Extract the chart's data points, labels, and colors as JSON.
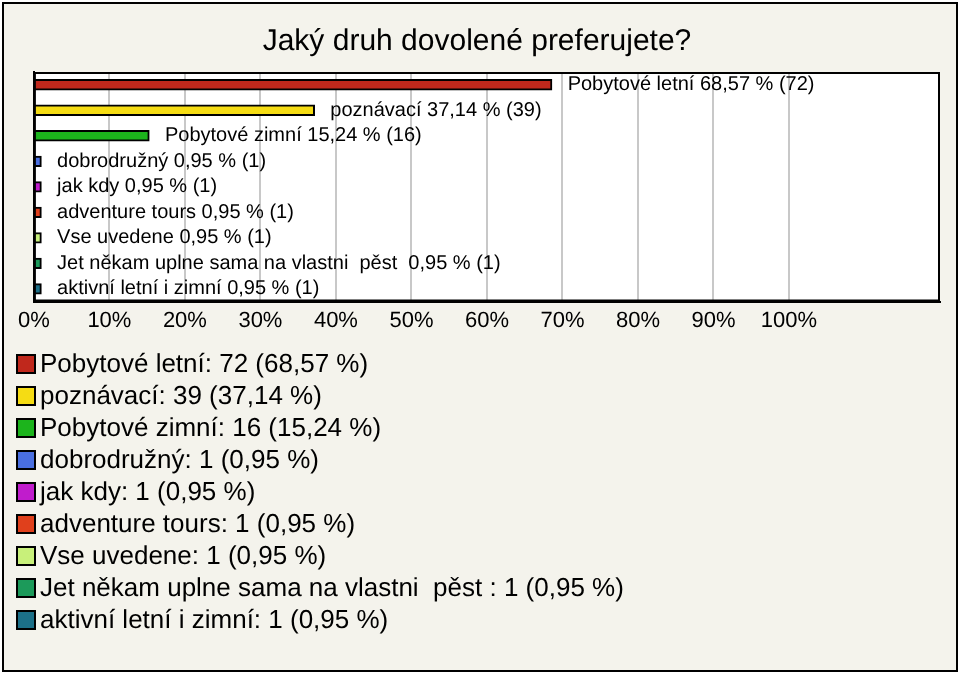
{
  "chart_data": {
    "type": "bar",
    "orientation": "horizontal",
    "title": "Jaký druh dovolené preferujete?",
    "categories": [
      null,
      null,
      null,
      null,
      null,
      null,
      null,
      null,
      null
    ],
    "xlim": [
      0,
      120
    ],
    "xticks": [
      {
        "value": 0,
        "label": "0%"
      },
      {
        "value": 10,
        "label": "10%"
      },
      {
        "value": 20,
        "label": "20%"
      },
      {
        "value": 30,
        "label": "30%"
      },
      {
        "value": 40,
        "label": "40%"
      },
      {
        "value": 50,
        "label": "50%"
      },
      {
        "value": 60,
        "label": "60%"
      },
      {
        "value": 70,
        "label": "70%"
      },
      {
        "value": 80,
        "label": "80%"
      },
      {
        "value": 90,
        "label": "90%"
      },
      {
        "value": 100,
        "label": "100%"
      }
    ],
    "grid": "x",
    "tick_labels": "x",
    "legend": "bottom",
    "series": [
      {
        "name": "Pobytové letní: 72 (68,57 %)",
        "color": "#c0281c",
        "values": [
          68.57,
          null,
          null,
          null,
          null,
          null,
          null,
          null,
          null
        ],
        "value_labels": [
          "Pobytové letní 68,57 % (72)",
          null,
          null,
          null,
          null,
          null,
          null,
          null,
          null
        ]
      },
      {
        "name": "poznávací: 39 (37,14 %)",
        "color": "#f5dc14",
        "values": [
          null,
          37.14,
          null,
          null,
          null,
          null,
          null,
          null,
          null
        ],
        "value_labels": [
          null,
          "poznávací 37,14 % (39)",
          null,
          null,
          null,
          null,
          null,
          null,
          null
        ]
      },
      {
        "name": "Pobytové zimní: 16 (15,24 %)",
        "color": "#1cb41c",
        "values": [
          null,
          null,
          15.24,
          null,
          null,
          null,
          null,
          null,
          null
        ],
        "value_labels": [
          null,
          null,
          "Pobytové zimní 15,24 % (16)",
          null,
          null,
          null,
          null,
          null,
          null
        ]
      },
      {
        "name": "dobrodružný: 1 (0,95 %)",
        "color": "#4a6fe0",
        "values": [
          null,
          null,
          null,
          0.95,
          null,
          null,
          null,
          null,
          null
        ],
        "value_labels": [
          null,
          null,
          null,
          "dobrodružný 0,95 % (1)",
          null,
          null,
          null,
          null,
          null
        ]
      },
      {
        "name": "jak kdy: 1 (0,95 %)",
        "color": "#c01ccc",
        "values": [
          null,
          null,
          null,
          null,
          0.95,
          null,
          null,
          null,
          null
        ],
        "value_labels": [
          null,
          null,
          null,
          null,
          "jak kdy 0,95 % (1)",
          null,
          null,
          null,
          null
        ]
      },
      {
        "name": "adventure tours: 1 (0,95 %)",
        "color": "#e0401c",
        "values": [
          null,
          null,
          null,
          null,
          null,
          0.95,
          null,
          null,
          null
        ],
        "value_labels": [
          null,
          null,
          null,
          null,
          null,
          "adventure tours 0,95 % (1)",
          null,
          null,
          null
        ]
      },
      {
        "name": "Vse uvedene: 1 (0,95 %)",
        "color": "#c8f07a",
        "values": [
          null,
          null,
          null,
          null,
          null,
          null,
          0.95,
          null,
          null
        ],
        "value_labels": [
          null,
          null,
          null,
          null,
          null,
          null,
          "Vse uvedene 0,95 % (1)",
          null,
          null
        ]
      },
      {
        "name": "Jet někam uplne sama na vlastni  pěst : 1 (0,95 %)",
        "color": "#1c9a5a",
        "values": [
          null,
          null,
          null,
          null,
          null,
          null,
          null,
          0.95,
          null
        ],
        "value_labels": [
          null,
          null,
          null,
          null,
          null,
          null,
          null,
          "Jet někam uplne sama na vlastni  pěst  0,95 % (1)",
          null
        ]
      },
      {
        "name": "aktivní letní i zimní: 1 (0,95 %)",
        "color": "#1c7088",
        "values": [
          null,
          null,
          null,
          null,
          null,
          null,
          null,
          null,
          0.95
        ],
        "value_labels": [
          null,
          null,
          null,
          null,
          null,
          null,
          null,
          null,
          "aktivní letní i zimní 0,95 % (1)"
        ]
      }
    ]
  }
}
